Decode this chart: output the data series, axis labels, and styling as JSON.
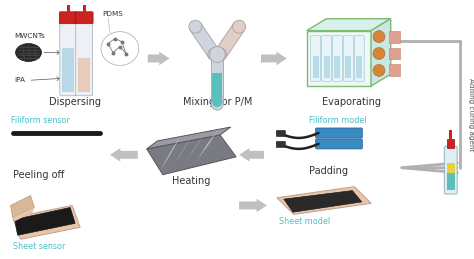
{
  "bg_color": "#ffffff",
  "steps_row1": [
    "Dispersing",
    "Mixing for P/M",
    "Evaporating"
  ],
  "steps_row2": [
    "Peeling off",
    "Heating",
    "Padding"
  ],
  "label_filiform_sensor": "Filiform sensor",
  "label_filiform_model": "Filiform model",
  "label_sheet_sensor": "Sheet sensor",
  "label_sheet_model": "Sheet model",
  "label_adding": "Adding curing agent",
  "label_mwcnts": "MWCNTs",
  "label_ipa": "IPA",
  "label_pdms": "PDMS",
  "cyan_label": "#4bbfc8",
  "arrow_color": "#b0b0b0",
  "green_edge": "#7dbb6e",
  "filiform_color": "#3a8bbf",
  "red_color": "#cc2222",
  "pink_color": "#e8c4a8",
  "teal_color": "#5bbfbe",
  "light_blue_tube": "#b8dce8",
  "orange_dot": "#d4853a",
  "salmon_dot": "#e0a090",
  "gray_arm": "#c0c4cc",
  "font_step": 7.0,
  "font_small": 5.2,
  "font_label": 5.8
}
